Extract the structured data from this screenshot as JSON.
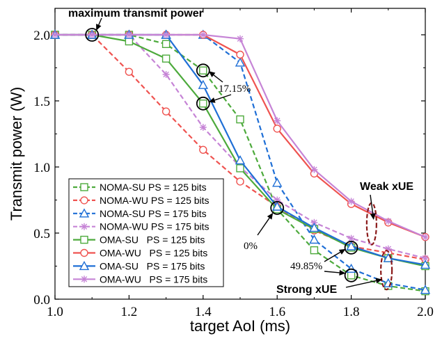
{
  "chart_data": {
    "type": "line",
    "xlabel": "target AoI (ms)",
    "ylabel": "Transmit power (W)",
    "xlim": [
      1.0,
      2.0
    ],
    "ylim": [
      0.0,
      2.2
    ],
    "xticks": [
      "1.0",
      "1.2",
      "1.4",
      "1.6",
      "1.8",
      "2.0"
    ],
    "yticks": [
      "0.0",
      "0.5",
      "1.0",
      "1.5",
      "2.0"
    ],
    "grid": false,
    "legend_position": "bottom-left",
    "x": [
      1.0,
      1.1,
      1.2,
      1.3,
      1.4,
      1.5,
      1.6,
      1.7,
      1.8,
      1.9,
      2.0
    ],
    "series": [
      {
        "name": "NOMA-SU PS = 125 bits",
        "color": "#4daa3c",
        "dash": true,
        "marker": "square",
        "values": [
          2.0,
          2.0,
          2.0,
          1.93,
          1.73,
          1.36,
          0.68,
          0.37,
          0.18,
          0.1,
          0.06
        ]
      },
      {
        "name": "NOMA-WU PS = 125 bits",
        "color": "#ef5350",
        "dash": true,
        "marker": "circle",
        "values": [
          2.0,
          2.0,
          1.72,
          1.42,
          1.13,
          0.89,
          0.7,
          0.52,
          0.4,
          0.35,
          0.3
        ]
      },
      {
        "name": "NOMA-SU PS = 175 bits",
        "color": "#1f6fd6",
        "dash": true,
        "marker": "triangle",
        "values": [
          2.0,
          2.0,
          2.0,
          2.0,
          2.0,
          1.79,
          0.88,
          0.45,
          0.23,
          0.12,
          0.07
        ]
      },
      {
        "name": "NOMA-WU PS = 175 bits",
        "color": "#c684d6",
        "dash": true,
        "marker": "star",
        "values": [
          2.0,
          2.0,
          2.0,
          1.7,
          1.3,
          1.0,
          0.75,
          0.58,
          0.46,
          0.38,
          0.31
        ]
      },
      {
        "name": "OMA-SU   PS = 125 bits",
        "color": "#4daa3c",
        "dash": false,
        "marker": "square",
        "values": [
          2.0,
          2.0,
          1.95,
          1.82,
          1.48,
          0.99,
          0.68,
          0.53,
          0.39,
          0.31,
          0.25
        ]
      },
      {
        "name": "OMA-WU   PS = 125 bits",
        "color": "#ef5350",
        "dash": false,
        "marker": "circle",
        "values": [
          2.0,
          2.0,
          2.0,
          2.0,
          2.0,
          1.85,
          1.29,
          0.95,
          0.72,
          0.58,
          0.47
        ]
      },
      {
        "name": "OMA-SU   PS = 175 bits",
        "color": "#1f6fd6",
        "dash": false,
        "marker": "triangle",
        "values": [
          2.0,
          2.0,
          2.0,
          2.0,
          1.62,
          1.05,
          0.7,
          0.54,
          0.4,
          0.31,
          0.26
        ]
      },
      {
        "name": "OMA-WU   PS = 175 bits",
        "color": "#c684d6",
        "dash": false,
        "marker": "star",
        "values": [
          2.0,
          2.0,
          2.0,
          2.0,
          2.0,
          1.97,
          1.35,
          0.98,
          0.74,
          0.59,
          0.47
        ]
      }
    ],
    "annotations": [
      {
        "text": "maximum transmit power",
        "bold": true
      },
      {
        "text": "17.15%",
        "bold": false
      },
      {
        "text": "0%",
        "bold": false
      },
      {
        "text": "49.85%",
        "bold": false
      },
      {
        "text": "Weak xUE",
        "bold": true
      },
      {
        "text": "Strong xUE",
        "bold": true
      }
    ]
  }
}
